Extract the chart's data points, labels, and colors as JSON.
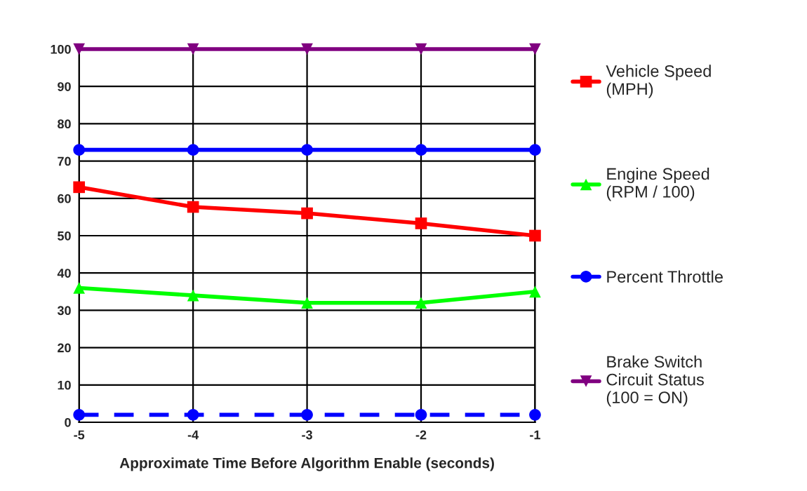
{
  "chart_data": {
    "type": "line",
    "xlabel": "Approximate Time Before Algorithm Enable (seconds)",
    "x": [
      -5,
      -4,
      -3,
      -2,
      -1
    ],
    "xlim": [
      -5,
      -1
    ],
    "xticks": [
      -5,
      -4,
      -3,
      -2,
      -1
    ],
    "ylim": [
      0,
      100
    ],
    "yticks": [
      0,
      10,
      20,
      30,
      40,
      50,
      60,
      70,
      80,
      90,
      100
    ],
    "grid": true,
    "legend": "right",
    "series": [
      {
        "name": "Vehicle Speed\n(MPH)",
        "color": "#ff0000",
        "marker": "square",
        "line_style": "solid",
        "values": [
          63,
          57.7,
          56,
          53.3,
          50
        ]
      },
      {
        "name": "Engine Speed\n(RPM / 100)",
        "color": "#00ff00",
        "marker": "triangle",
        "line_style": "solid",
        "values": [
          36,
          34,
          32,
          32,
          35
        ]
      },
      {
        "name": "Percent Throttle",
        "color": "#0000ff",
        "marker": "circle",
        "line_style": "solid",
        "values": [
          73,
          73,
          73,
          73,
          73
        ]
      },
      {
        "name": "Brake Switch\nCircuit Status\n(100 = ON)",
        "color": "#800080",
        "marker": "triangle_down",
        "line_style": "solid",
        "values": [
          100,
          100,
          100,
          100,
          100
        ]
      },
      {
        "color": "#0000ff",
        "marker": "circle",
        "line_style": "dashed",
        "values": [
          2,
          2,
          2,
          2,
          2
        ]
      }
    ]
  }
}
